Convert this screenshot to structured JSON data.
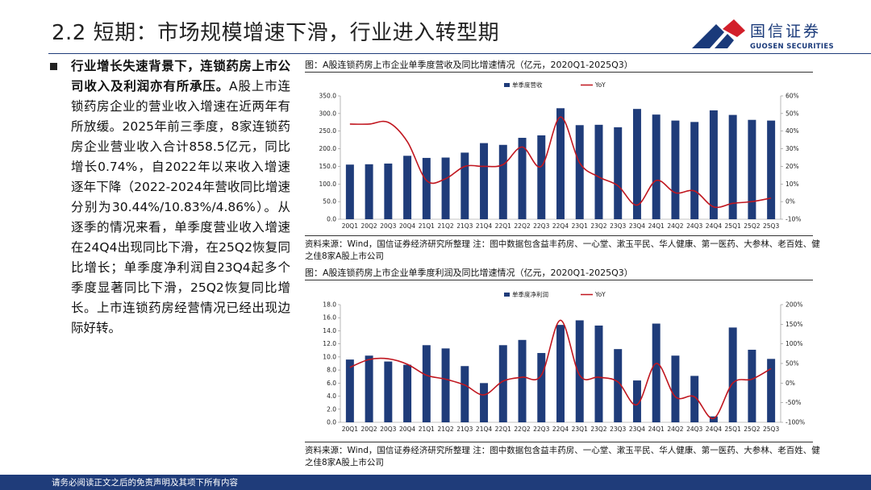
{
  "header": {
    "title": "2.2 短期：市场规模增速下滑，行业进入转型期",
    "logo_cn": "国信证券",
    "logo_en": "GUOSEN SECURITIES"
  },
  "bullet": {
    "bold_text": "行业增长失速背景下，连锁药房上市公司收入及利润亦有所承压。",
    "body_text": "A股上市连锁药房企业的营业收入增速在近两年有所放缓。2025年前三季度，8家连锁药房企业营业收入合计858.5亿元，同比增长0.74%，自2022年以来收入增速逐年下降（2022-2024年营收同比增速分别为30.44%/10.83%/4.86%）。从逐季的情况来看，单季度营业收入增速在24Q4出现同比下滑，在25Q2恢复同比增长；单季度净利润自23Q4起多个季度显著同比下滑，25Q2恢复同比增长。上市连锁药房经营情况已经出现边际好转。"
  },
  "colors": {
    "bar": "#1f3c7a",
    "line": "#c0161f",
    "brand": "#1a3a7a"
  },
  "chart_data": [
    {
      "type": "bar",
      "caption": "图：A股连锁药房上市企业单季度营收及同比增速情况（亿元，2020Q1-2025Q3）",
      "categories": [
        "20Q1",
        "20Q2",
        "20Q3",
        "20Q4",
        "21Q1",
        "21Q2",
        "21Q3",
        "21Q4",
        "22Q1",
        "22Q2",
        "22Q3",
        "22Q4",
        "23Q1",
        "23Q2",
        "23Q3",
        "23Q4",
        "24Q1",
        "24Q2",
        "24Q3",
        "24Q4",
        "25Q1",
        "25Q2",
        "25Q3"
      ],
      "series": [
        {
          "name": "单季度营收",
          "axis": "left",
          "values": [
            155,
            156,
            158,
            180,
            174,
            175,
            189,
            216,
            211,
            231,
            238,
            315,
            267,
            268,
            261,
            313,
            297,
            280,
            276,
            309,
            296,
            282,
            280
          ]
        },
        {
          "name": "YoY",
          "axis": "right",
          "values": [
            44,
            44,
            45,
            34,
            12,
            13,
            20,
            20,
            21,
            31,
            20,
            48,
            22,
            14,
            9,
            -2,
            12,
            5,
            6,
            -3,
            -1,
            0,
            2
          ]
        }
      ],
      "left_axis": {
        "ylim": [
          0,
          350
        ],
        "ticks": [
          "0.0",
          "50.0",
          "100.0",
          "150.0",
          "200.0",
          "250.0",
          "300.0",
          "350.0"
        ]
      },
      "right_axis": {
        "ylim": [
          -10,
          60
        ],
        "ticks": [
          "-10%",
          "0%",
          "10%",
          "20%",
          "30%",
          "40%",
          "50%",
          "60%"
        ]
      },
      "legend_position": "top-center",
      "source_text": "资料来源：Wind，国信证券经济研究所整理 注：图中数据包含益丰药房、一心堂、漱玉平民、华人健康、第一医药、大参林、老百姓、健之佳8家A股上市公司"
    },
    {
      "type": "bar",
      "caption": "图：A股连锁药房上市企业单季度利润及同比增速情况（亿元，2020Q1-2025Q3）",
      "categories": [
        "20Q1",
        "20Q2",
        "20Q3",
        "20Q4",
        "21Q1",
        "21Q2",
        "21Q3",
        "21Q4",
        "22Q1",
        "22Q2",
        "22Q3",
        "22Q4",
        "23Q1",
        "23Q2",
        "23Q3",
        "23Q4",
        "24Q1",
        "24Q2",
        "24Q3",
        "24Q4",
        "25Q1",
        "25Q2",
        "25Q3"
      ],
      "series": [
        {
          "name": "单季度净利润",
          "axis": "left",
          "values": [
            9.6,
            10.2,
            9.3,
            8.8,
            11.8,
            11.3,
            8.6,
            6.0,
            11.8,
            12.6,
            10.6,
            14.9,
            15.6,
            14.8,
            11.2,
            6.4,
            15.1,
            10.2,
            7.1,
            0.9,
            14.5,
            11.1,
            9.7
          ]
        },
        {
          "name": "YoY",
          "axis": "right",
          "values": [
            40,
            60,
            62,
            48,
            20,
            10,
            -5,
            -30,
            5,
            15,
            20,
            160,
            20,
            15,
            3,
            -55,
            50,
            -35,
            -35,
            -90,
            0,
            10,
            37
          ]
        }
      ],
      "left_axis": {
        "ylim": [
          0,
          18
        ],
        "ticks": [
          "0.0",
          "2.0",
          "4.0",
          "6.0",
          "8.0",
          "10.0",
          "12.0",
          "14.0",
          "16.0",
          "18.0"
        ]
      },
      "right_axis": {
        "ylim": [
          -100,
          200
        ],
        "ticks": [
          "-100%",
          "-50%",
          "0%",
          "50%",
          "100%",
          "150%",
          "200%"
        ]
      },
      "legend_position": "top-center",
      "source_text": "资料来源：Wind，国信证券经济研究所整理 注：图中数据包含益丰药房、一心堂、漱玉平民、华人健康、第一医药、大参林、老百姓、健之佳8家A股上市公司"
    }
  ],
  "footer": {
    "text": "请务必阅读正文之后的免责声明及其项下所有内容"
  }
}
